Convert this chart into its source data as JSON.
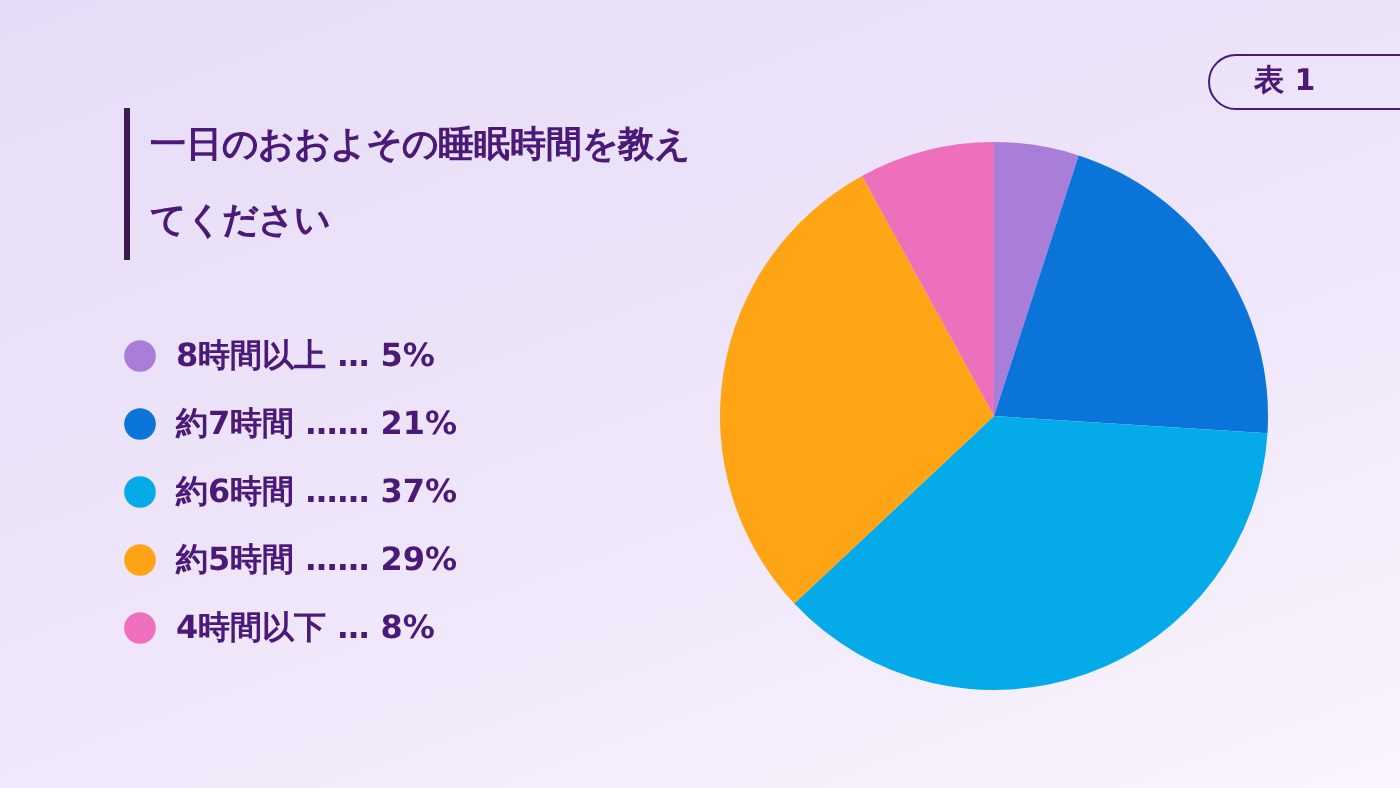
{
  "chart_data": {
    "type": "pie",
    "title": "一日のおおよその睡眠時間を教えてください",
    "categories": [
      "8時間以上",
      "約7時間",
      "約6時間",
      "約5時間",
      "4時間以下"
    ],
    "values": [
      5,
      21,
      37,
      29,
      8
    ],
    "value_labels": [
      "… 5%",
      "…… 21%",
      "…… 37%",
      "…… 29%",
      "… 8%"
    ],
    "colors": [
      "#a87ed8",
      "#0a74d8",
      "#05aae8",
      "#fea415",
      "#ee70bc"
    ],
    "legend": "left",
    "annotations": [
      "表 1"
    ]
  }
}
